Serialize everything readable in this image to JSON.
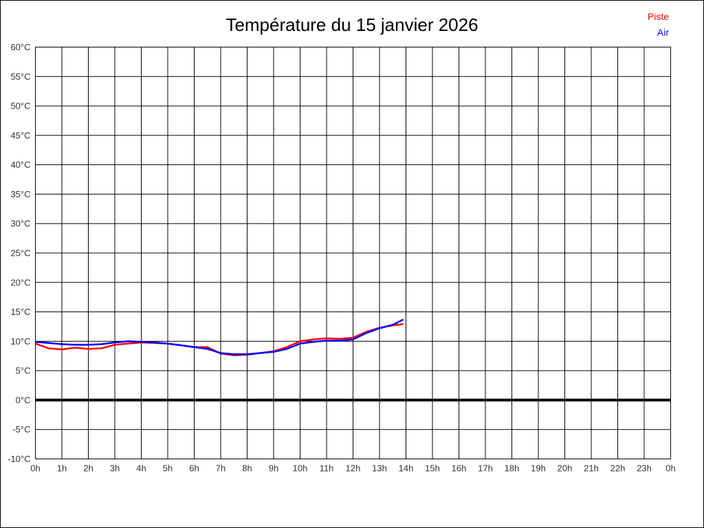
{
  "title": "Température du 15 janvier 2026",
  "legend": {
    "items": [
      {
        "label": "Piste",
        "color": "#ff0000"
      },
      {
        "label": "Air",
        "color": "#0000ff"
      }
    ]
  },
  "axes": {
    "y_ticks": [
      "60°C",
      "55°C",
      "50°C",
      "45°C",
      "40°C",
      "35°C",
      "30°C",
      "25°C",
      "20°C",
      "15°C",
      "10°C",
      "5°C",
      "0°C",
      "-5°C",
      "-10°C"
    ],
    "x_ticks": [
      "0h",
      "1h",
      "2h",
      "3h",
      "4h",
      "5h",
      "6h",
      "7h",
      "8h",
      "9h",
      "10h",
      "11h",
      "12h",
      "13h",
      "14h",
      "15h",
      "16h",
      "17h",
      "18h",
      "19h",
      "20h",
      "21h",
      "22h",
      "23h",
      "0h"
    ]
  },
  "chart_data": {
    "type": "line",
    "title": "Température du 15 janvier 2026",
    "xlabel": "",
    "ylabel": "",
    "xlim": [
      0,
      24
    ],
    "ylim": [
      -10,
      60
    ],
    "y_step": 5,
    "grid": true,
    "grid_color": "#000000",
    "zero_line": {
      "value": 0,
      "color": "#000000",
      "width": 4
    },
    "tick_label_color": "#333333",
    "legend_position": "top-right",
    "x": [
      0,
      0.5,
      1,
      1.5,
      2,
      2.5,
      3,
      3.5,
      4,
      4.5,
      5,
      5.5,
      6,
      6.5,
      7,
      7.5,
      8,
      8.5,
      9,
      9.5,
      10,
      10.5,
      11,
      11.5,
      12,
      12.5,
      13,
      13.5,
      13.9
    ],
    "series": [
      {
        "name": "Piste",
        "color": "#ff0000",
        "values": [
          9.6,
          8.8,
          8.6,
          8.9,
          8.7,
          8.8,
          9.4,
          9.6,
          9.8,
          9.7,
          9.6,
          9.3,
          9.0,
          9.0,
          7.9,
          7.6,
          7.7,
          8.0,
          8.3,
          9.0,
          10.0,
          10.3,
          10.5,
          10.4,
          10.6,
          11.6,
          12.3,
          12.7,
          12.9
        ]
      },
      {
        "name": "Air",
        "color": "#0000ff",
        "values": [
          9.9,
          9.7,
          9.5,
          9.4,
          9.4,
          9.5,
          9.8,
          10.0,
          9.9,
          9.8,
          9.6,
          9.3,
          9.0,
          8.7,
          8.0,
          7.8,
          7.8,
          8.0,
          8.2,
          8.7,
          9.6,
          9.9,
          10.1,
          10.1,
          10.3,
          11.4,
          12.2,
          12.8,
          13.7
        ]
      }
    ]
  }
}
